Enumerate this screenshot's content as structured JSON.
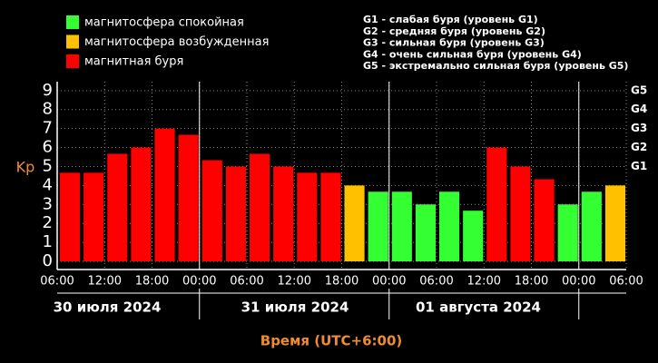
{
  "chart_data": {
    "type": "bar",
    "legend": [
      {
        "label": "магнитосфера спокойная",
        "color": "#33ff33"
      },
      {
        "label": "магнитосфера возбужденная",
        "color": "#ffc000"
      },
      {
        "label": "магнитная буря",
        "color": "#ff0000"
      }
    ],
    "storm_scale": [
      "G1 - слабая буря (уровень G1)",
      "G2 - средняя буря (уровень G2)",
      "G3 - сильная буря (уровень G3)",
      "G4 - очень сильная буря (уровень G4)",
      "G5 - экстремально сильная буря (уровень G5)"
    ],
    "y_label": "Kp",
    "x_label": "Время (UTC+6:00)",
    "xtick_labels": [
      "06:00",
      "12:00",
      "18:00",
      "00:00",
      "06:00",
      "12:00",
      "18:00",
      "00:00",
      "06:00",
      "12:00",
      "18:00",
      "00:00",
      "06:00"
    ],
    "day_labels": [
      "30 июля 2024",
      "31 июля 2024",
      "01 августа 2024"
    ],
    "values": [
      4.67,
      4.67,
      5.67,
      6,
      7,
      6.67,
      5.33,
      5,
      5.67,
      5,
      4.67,
      4.67,
      4,
      3.67,
      3.67,
      3,
      3.67,
      2.67,
      6,
      5,
      4.33,
      3,
      3.67,
      4
    ],
    "bar_colors": [
      "#ff0000",
      "#ff0000",
      "#ff0000",
      "#ff0000",
      "#ff0000",
      "#ff0000",
      "#ff0000",
      "#ff0000",
      "#ff0000",
      "#ff0000",
      "#ff0000",
      "#ff0000",
      "#ffc000",
      "#33ff33",
      "#33ff33",
      "#33ff33",
      "#33ff33",
      "#33ff33",
      "#ff0000",
      "#ff0000",
      "#ff0000",
      "#33ff33",
      "#33ff33",
      "#ffc000"
    ],
    "ylim": [
      -0.43,
      9.47
    ],
    "yticks": [
      0,
      1,
      2,
      3,
      4,
      5,
      6,
      7,
      8,
      9
    ],
    "y2lim": [
      -0.43,
      9.47
    ],
    "y2ticks": [
      {
        "value": 5,
        "label": "G1"
      },
      {
        "value": 6,
        "label": "G2"
      },
      {
        "value": 7,
        "label": "G3"
      },
      {
        "value": 8,
        "label": "G4"
      },
      {
        "value": 9,
        "label": "G5"
      }
    ],
    "grid": true
  }
}
